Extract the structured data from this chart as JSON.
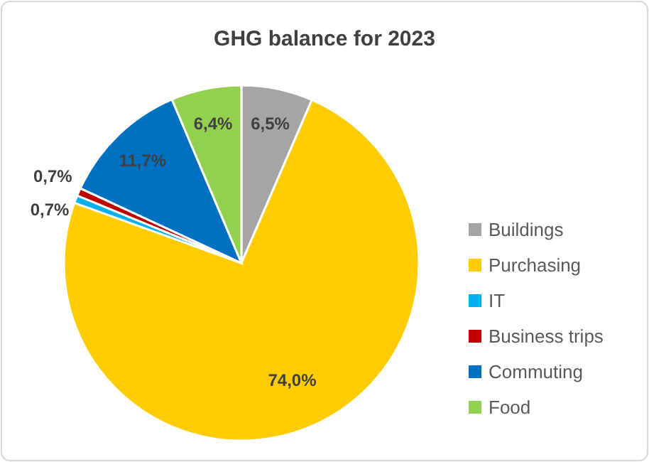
{
  "chart_data": {
    "type": "pie",
    "title": "GHG balance for 2023",
    "categories": [
      "Buildings",
      "Purchasing",
      "IT",
      "Business trips",
      "Commuting",
      "Food"
    ],
    "values": [
      6.5,
      74.0,
      0.7,
      0.7,
      11.7,
      6.4
    ],
    "value_labels": [
      "6,5%",
      "74,0%",
      "0,7%",
      "0,7%",
      "11,7%",
      "6,4%"
    ],
    "colors": [
      "#a5a5a5",
      "#ffcc00",
      "#00b0f0",
      "#c00000",
      "#0070c0",
      "#92d050"
    ],
    "legend": "right"
  }
}
